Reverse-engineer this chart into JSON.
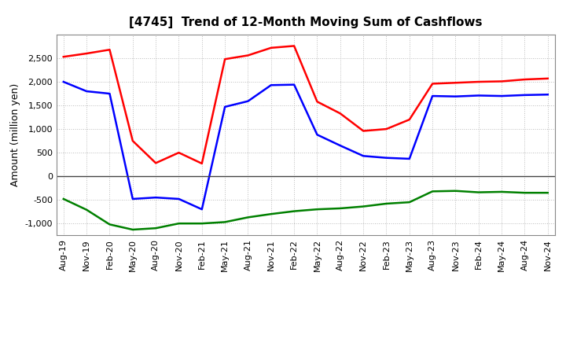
{
  "title": "[4745]  Trend of 12-Month Moving Sum of Cashflows",
  "ylabel": "Amount (million yen)",
  "x_labels": [
    "Aug-19",
    "Nov-19",
    "Feb-20",
    "May-20",
    "Aug-20",
    "Nov-20",
    "Feb-21",
    "May-21",
    "Aug-21",
    "Nov-21",
    "Feb-22",
    "May-22",
    "Aug-22",
    "Nov-22",
    "Feb-23",
    "May-23",
    "Aug-23",
    "Nov-23",
    "Feb-24",
    "May-24",
    "Aug-24",
    "Nov-24"
  ],
  "operating_cashflow": [
    2530,
    2600,
    2680,
    750,
    280,
    500,
    270,
    2480,
    2560,
    2720,
    2760,
    1580,
    1330,
    960,
    1000,
    1200,
    1960,
    1980,
    2000,
    2010,
    2050,
    2070
  ],
  "investing_cashflow": [
    -480,
    -710,
    -1020,
    -1130,
    -1100,
    -1000,
    -1000,
    -970,
    -870,
    -800,
    -740,
    -700,
    -680,
    -640,
    -580,
    -550,
    -320,
    -310,
    -340,
    -330,
    -350,
    -350
  ],
  "free_cashflow": [
    2000,
    1800,
    1750,
    -480,
    -450,
    -480,
    -700,
    1470,
    1590,
    1930,
    1940,
    880,
    650,
    430,
    390,
    370,
    1700,
    1690,
    1710,
    1700,
    1720,
    1730
  ],
  "operating_color": "#ff0000",
  "investing_color": "#008000",
  "free_color": "#0000ff",
  "ylim": [
    -1250,
    3000
  ],
  "yticks": [
    -1000,
    -500,
    0,
    500,
    1000,
    1500,
    2000,
    2500
  ],
  "grid_color": "#bbbbbb",
  "background_color": "#ffffff",
  "line_width": 1.8
}
